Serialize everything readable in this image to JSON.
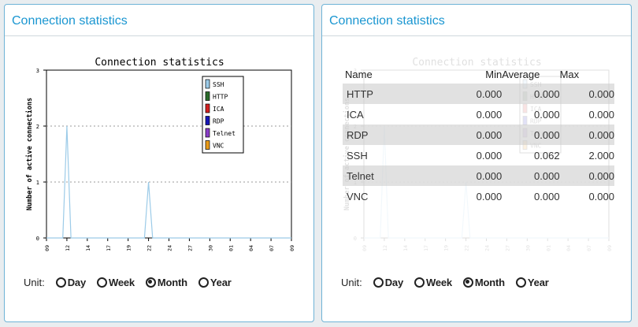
{
  "panels": [
    {
      "title": "Connection statistics"
    },
    {
      "title": "Connection statistics"
    }
  ],
  "chart_data": {
    "type": "line",
    "title": "Connection statistics",
    "ylabel": "Number of active connections",
    "xlabel": "",
    "ylim": [
      0,
      3
    ],
    "yticks": [
      "0",
      "1",
      "2",
      "3"
    ],
    "xticks": [
      "09",
      "12",
      "14",
      "17",
      "19",
      "22",
      "24",
      "27",
      "30",
      "01",
      "04",
      "07",
      "09"
    ],
    "grid": "dotted horizontal",
    "legend": "top-right",
    "series": [
      {
        "name": "SSH",
        "color": "#9ccbe8",
        "x": [
          0,
          0.8,
          1.0,
          1.2,
          4.8,
          5.0,
          5.2,
          12
        ],
        "values": [
          0,
          0,
          2,
          0,
          0,
          1,
          0,
          0
        ]
      },
      {
        "name": "HTTP",
        "color": "#2a6b2a",
        "values": []
      },
      {
        "name": "ICA",
        "color": "#d42020",
        "values": []
      },
      {
        "name": "RDP",
        "color": "#1515b8",
        "values": []
      },
      {
        "name": "Telnet",
        "color": "#8a3ec8",
        "values": []
      },
      {
        "name": "VNC",
        "color": "#e89a18",
        "values": []
      }
    ]
  },
  "unit": {
    "label": "Unit:",
    "options": [
      "Day",
      "Week",
      "Month",
      "Year"
    ],
    "selected": "Month"
  },
  "table": {
    "headers": [
      "Name",
      "Min",
      "Average",
      "Max"
    ],
    "rows": [
      [
        "HTTP",
        "0.000",
        "0.000",
        "0.000"
      ],
      [
        "ICA",
        "0.000",
        "0.000",
        "0.000"
      ],
      [
        "RDP",
        "0.000",
        "0.000",
        "0.000"
      ],
      [
        "SSH",
        "0.000",
        "0.062",
        "2.000"
      ],
      [
        "Telnet",
        "0.000",
        "0.000",
        "0.000"
      ],
      [
        "VNC",
        "0.000",
        "0.000",
        "0.000"
      ]
    ]
  }
}
